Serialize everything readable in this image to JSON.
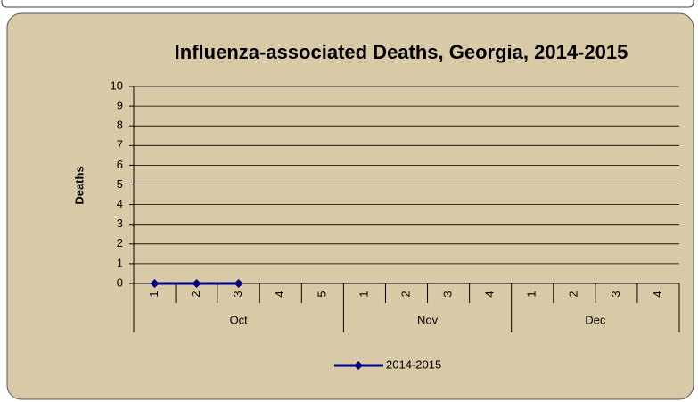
{
  "chart_data": {
    "type": "line",
    "title": "Influenza-associated Deaths, Georgia, 2014-2015",
    "y_label": "Deaths",
    "groups": [
      {
        "name": "Oct",
        "categories": [
          "1",
          "2",
          "3",
          "4",
          "5"
        ]
      },
      {
        "name": "Nov",
        "categories": [
          "1",
          "2",
          "3",
          "4"
        ]
      },
      {
        "name": "Dec",
        "categories": [
          "1",
          "2",
          "3",
          "4"
        ]
      }
    ],
    "series": [
      {
        "name": "2014-2015",
        "color": "#000080",
        "values": [
          0,
          0,
          0,
          null,
          null,
          null,
          null,
          null,
          null,
          null,
          null,
          null,
          null
        ]
      }
    ],
    "ylim": [
      0,
      10
    ],
    "yticks": [
      0,
      1,
      2,
      3,
      4,
      5,
      6,
      7,
      8,
      9,
      10
    ],
    "grid": true,
    "legend": "bottom"
  }
}
